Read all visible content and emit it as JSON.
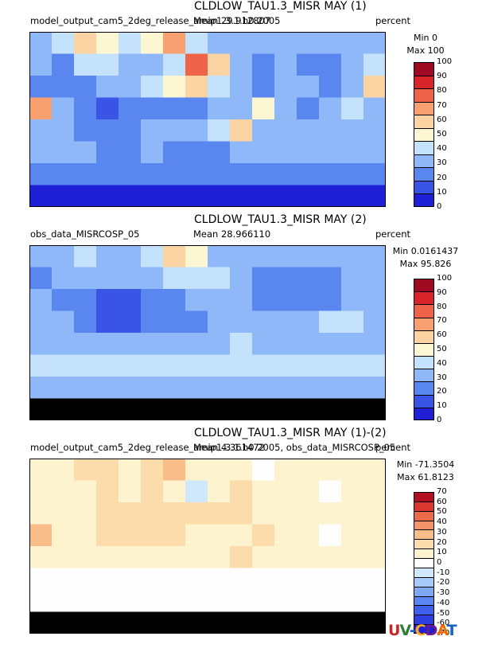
{
  "panels": [
    {
      "title": "CLDLOW_TAU1.3_MISR MAY (1)",
      "left_label": "model_output_cam5_2deg_release_amip1.3.1.h0.2005",
      "mean_label": "Mean 29.912807",
      "units": "percent",
      "min_label": "Min 0",
      "max_label": "Max 100",
      "colorbar_ticks": [
        "100",
        "90",
        "80",
        "70",
        "60",
        "50",
        "40",
        "30",
        "20",
        "10",
        "0"
      ]
    },
    {
      "title": "CLDLOW_TAU1.3_MISR MAY (2)",
      "left_label": "obs_data_MISRCOSP_05",
      "mean_label": "Mean 28.966110",
      "units": "percent",
      "min_label": "Min 0.0161437",
      "max_label": "Max 95.826",
      "colorbar_ticks": [
        "100",
        "90",
        "80",
        "70",
        "60",
        "50",
        "40",
        "30",
        "20",
        "10",
        "0"
      ]
    },
    {
      "title": "CLDLOW_TAU1.3_MISR MAY (1)-(2)",
      "left_label": "model_output_cam5_2deg_release_amip1.3.1.h0.2005, obs_data_MISRCOSP_05",
      "mean_label": "Mean 4.361472",
      "units": "percent",
      "min_label": "Min -71.3504",
      "max_label": "Max 61.8123",
      "colorbar_ticks": [
        "70",
        "60",
        "50",
        "40",
        "30",
        "20",
        "10",
        "0",
        "-10",
        "-20",
        "-30",
        "-40",
        "-50",
        "-60",
        "-70"
      ]
    }
  ],
  "chart_data": [
    {
      "type": "heatmap",
      "title": "CLDLOW_TAU1.3_MISR MAY (1)",
      "subtitle": "model_output_cam5_2deg_release_amip1.3.1.h0.2005",
      "units": "percent",
      "mean": 29.912807,
      "min": 0,
      "max": 100,
      "colorbar": [
        0,
        10,
        20,
        30,
        40,
        50,
        60,
        70,
        80,
        90,
        100
      ],
      "colors": [
        "#1f1fd6",
        "#3a55e6",
        "#5a86f0",
        "#8fb8f8",
        "#c4e2fb",
        "#fdf6d2",
        "#fcd3a2",
        "#f8a070",
        "#ef6448",
        "#d9242a",
        "#9e0a22"
      ],
      "field": [
        [
          0.35,
          0.45,
          0.55,
          0.5,
          0.4,
          0.5,
          0.7,
          0.45,
          0.3,
          0.3,
          0.35,
          0.3,
          0.3,
          0.35,
          0.3,
          0.3
        ],
        [
          0.3,
          0.25,
          0.45,
          0.4,
          0.3,
          0.35,
          0.4,
          0.75,
          0.6,
          0.3,
          0.25,
          0.3,
          0.25,
          0.2,
          0.3,
          0.4
        ],
        [
          0.25,
          0.25,
          0.2,
          0.3,
          0.35,
          0.4,
          0.5,
          0.55,
          0.45,
          0.35,
          0.25,
          0.3,
          0.3,
          0.25,
          0.35,
          0.55
        ],
        [
          0.7,
          0.3,
          0.2,
          0.15,
          0.2,
          0.2,
          0.2,
          0.25,
          0.3,
          0.3,
          0.5,
          0.3,
          0.25,
          0.3,
          0.4,
          0.3
        ],
        [
          0.35,
          0.3,
          0.25,
          0.2,
          0.25,
          0.3,
          0.3,
          0.3,
          0.4,
          0.55,
          0.35,
          0.3,
          0.3,
          0.35,
          0.3,
          0.3
        ],
        [
          0.3,
          0.3,
          0.3,
          0.25,
          0.25,
          0.3,
          0.25,
          0.25,
          0.25,
          0.3,
          0.3,
          0.3,
          0.3,
          0.3,
          0.3,
          0.3
        ],
        [
          0.2,
          0.2,
          0.2,
          0.2,
          0.2,
          0.2,
          0.2,
          0.2,
          0.2,
          0.2,
          0.2,
          0.2,
          0.2,
          0.2,
          0.2,
          0.2
        ],
        [
          0.08,
          0.08,
          0.08,
          0.08,
          0.08,
          0.08,
          0.08,
          0.08,
          0.08,
          0.08,
          0.08,
          0.08,
          0.08,
          0.08,
          0.08,
          0.08
        ]
      ]
    },
    {
      "type": "heatmap",
      "title": "CLDLOW_TAU1.3_MISR MAY (2)",
      "subtitle": "obs_data_MISRCOSP_05",
      "units": "percent",
      "mean": 28.96611,
      "min": 0.0161437,
      "max": 95.826,
      "colorbar": [
        0,
        10,
        20,
        30,
        40,
        50,
        60,
        70,
        80,
        90,
        100
      ],
      "colors": [
        "#1f1fd6",
        "#3a55e6",
        "#5a86f0",
        "#8fb8f8",
        "#c4e2fb",
        "#fdf6d2",
        "#fcd3a2",
        "#f8a070",
        "#ef6448",
        "#d9242a",
        "#9e0a22"
      ],
      "field": [
        [
          0.3,
          0.35,
          0.4,
          0.35,
          0.3,
          0.4,
          0.55,
          0.5,
          0.35,
          0.3,
          0.3,
          0.35,
          0.3,
          0.3,
          0.3,
          0.3
        ],
        [
          0.25,
          0.3,
          0.3,
          0.3,
          0.3,
          0.35,
          0.4,
          0.45,
          0.4,
          0.35,
          0.25,
          0.25,
          0.25,
          0.25,
          0.3,
          0.3
        ],
        [
          0.3,
          0.25,
          0.2,
          0.15,
          0.15,
          0.2,
          0.25,
          0.3,
          0.35,
          0.3,
          0.25,
          0.25,
          0.2,
          0.25,
          0.3,
          0.35
        ],
        [
          0.35,
          0.3,
          0.2,
          0.15,
          0.15,
          0.2,
          0.2,
          0.25,
          0.3,
          0.35,
          0.3,
          0.3,
          0.3,
          0.4,
          0.45,
          0.35
        ],
        [
          0.3,
          0.35,
          0.3,
          0.3,
          0.3,
          0.3,
          0.3,
          0.35,
          0.35,
          0.4,
          0.35,
          0.35,
          0.35,
          0.35,
          0.35,
          0.35
        ],
        [
          0.4,
          0.4,
          0.4,
          0.4,
          0.4,
          0.4,
          0.4,
          0.4,
          0.4,
          0.4,
          0.4,
          0.4,
          0.4,
          0.4,
          0.4,
          0.4
        ],
        [
          0.35,
          0.35,
          0.35,
          0.35,
          0.35,
          0.35,
          0.35,
          0.35,
          0.35,
          0.35,
          0.35,
          0.35,
          0.35,
          0.35,
          0.35,
          0.35
        ],
        [
          -1,
          -1,
          -1,
          -1,
          -1,
          -1,
          -1,
          -1,
          -1,
          -1,
          -1,
          -1,
          -1,
          -1,
          -1,
          -1
        ]
      ]
    },
    {
      "type": "heatmap",
      "title": "CLDLOW_TAU1.3_MISR MAY (1)-(2)",
      "subtitle": "model_output_cam5_2deg_release_amip1.3.1.h0.2005, obs_data_MISRCOSP_05",
      "units": "percent",
      "mean": 4.361472,
      "min": -71.3504,
      "max": 61.8123,
      "colorbar": [
        -70,
        -60,
        -50,
        -40,
        -30,
        -20,
        -10,
        0,
        10,
        20,
        30,
        40,
        50,
        60,
        70
      ],
      "colors": [
        "#1f1fd6",
        "#2e3fe0",
        "#3e60ea",
        "#5b86f2",
        "#7ea9f7",
        "#a6cbfb",
        "#d0e8fd",
        "#fefefe",
        "#fdf3cf",
        "#fcdcab",
        "#f9bd8a",
        "#f49468",
        "#ea6a4a",
        "#d9372f",
        "#b0101f"
      ],
      "field": [
        [
          0.55,
          0.55,
          0.6,
          0.6,
          0.55,
          0.6,
          0.7,
          0.55,
          0.55,
          0.55,
          0.5,
          0.55,
          0.55,
          0.55,
          0.55,
          0.55
        ],
        [
          0.55,
          0.55,
          0.55,
          0.6,
          0.55,
          0.6,
          0.55,
          0.45,
          0.55,
          0.6,
          0.55,
          0.55,
          0.55,
          0.5,
          0.55,
          0.55
        ],
        [
          0.55,
          0.55,
          0.55,
          0.6,
          0.6,
          0.6,
          0.6,
          0.6,
          0.6,
          0.6,
          0.55,
          0.55,
          0.55,
          0.55,
          0.55,
          0.55
        ],
        [
          0.7,
          0.55,
          0.55,
          0.6,
          0.6,
          0.6,
          0.6,
          0.55,
          0.55,
          0.55,
          0.6,
          0.55,
          0.55,
          0.5,
          0.55,
          0.55
        ],
        [
          0.55,
          0.55,
          0.55,
          0.55,
          0.55,
          0.55,
          0.55,
          0.55,
          0.55,
          0.6,
          0.55,
          0.55,
          0.55,
          0.55,
          0.55,
          0.55
        ],
        [
          0.5,
          0.5,
          0.5,
          0.5,
          0.5,
          0.5,
          0.5,
          0.5,
          0.5,
          0.5,
          0.5,
          0.5,
          0.5,
          0.5,
          0.5,
          0.5
        ],
        [
          0.5,
          0.5,
          0.5,
          0.5,
          0.5,
          0.5,
          0.5,
          0.5,
          0.5,
          0.5,
          0.5,
          0.5,
          0.5,
          0.5,
          0.5,
          0.5
        ],
        [
          -1,
          -1,
          -1,
          -1,
          -1,
          -1,
          -1,
          -1,
          -1,
          -1,
          -1,
          -1,
          -1,
          -1,
          -1,
          -1
        ]
      ]
    }
  ],
  "logo": {
    "text": "UV-CDAT",
    "letters": [
      "U",
      "V",
      "-",
      "C",
      "D",
      "A",
      "T"
    ],
    "letter_colors": [
      "#c62828",
      "#2e7d32",
      "#1565c0",
      "#f9a825",
      "#6a1b9a",
      "#ef6c00",
      "#1565c0"
    ]
  }
}
